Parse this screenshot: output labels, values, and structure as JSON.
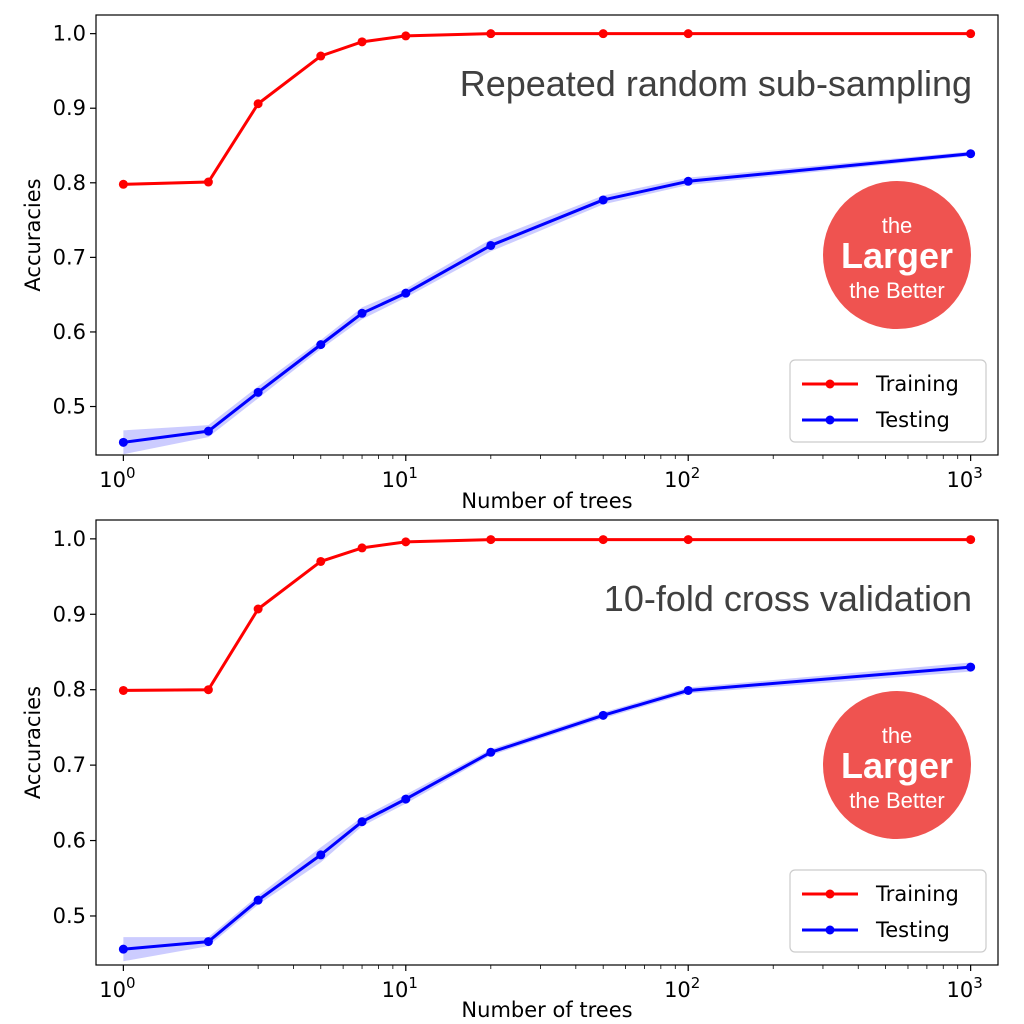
{
  "chart_data": [
    {
      "type": "line",
      "annotation": "Repeated random sub-sampling",
      "xlabel": "Number of trees",
      "ylabel": "Accuracies",
      "xscale": "log",
      "xlim": [
        0.8,
        1250
      ],
      "ylim": [
        0.435,
        1.025
      ],
      "yticks": [
        "0.5",
        "0.6",
        "0.7",
        "0.8",
        "0.9",
        "1.0"
      ],
      "xticks": [
        {
          "base": "10",
          "exp": "0"
        },
        {
          "base": "10",
          "exp": "1"
        },
        {
          "base": "10",
          "exp": "2"
        },
        {
          "base": "10",
          "exp": "3"
        }
      ],
      "grid": false,
      "legend_position": "bottom-right",
      "x": [
        1,
        2,
        3,
        5,
        7,
        10,
        20,
        50,
        100,
        1000
      ],
      "series": [
        {
          "name": "Training",
          "color": "#ff0000",
          "values": [
            0.798,
            0.801,
            0.906,
            0.97,
            0.989,
            0.997,
            1.0,
            1.0,
            1.0,
            1.0
          ],
          "band": [
            0.002,
            0.002,
            0.002,
            0.002,
            0.001,
            0.001,
            0.0,
            0.0,
            0.0,
            0.0
          ]
        },
        {
          "name": "Testing",
          "color": "#0000ff",
          "values": [
            0.452,
            0.467,
            0.519,
            0.583,
            0.625,
            0.652,
            0.716,
            0.777,
            0.802,
            0.839
          ],
          "band": [
            0.016,
            0.008,
            0.008,
            0.006,
            0.008,
            0.006,
            0.008,
            0.006,
            0.005,
            0.003
          ]
        }
      ],
      "badge": {
        "line1": "the",
        "line2": "Larger",
        "line3": "the Better",
        "color": "#ef5350"
      }
    },
    {
      "type": "line",
      "annotation": "10-fold cross validation",
      "xlabel": "Number of trees",
      "ylabel": "Accuracies",
      "xscale": "log",
      "xlim": [
        0.8,
        1250
      ],
      "ylim": [
        0.435,
        1.025
      ],
      "yticks": [
        "0.5",
        "0.6",
        "0.7",
        "0.8",
        "0.9",
        "1.0"
      ],
      "xticks": [
        {
          "base": "10",
          "exp": "0"
        },
        {
          "base": "10",
          "exp": "1"
        },
        {
          "base": "10",
          "exp": "2"
        },
        {
          "base": "10",
          "exp": "3"
        }
      ],
      "grid": false,
      "legend_position": "bottom-right",
      "x": [
        1,
        2,
        3,
        5,
        7,
        10,
        20,
        50,
        100,
        1000
      ],
      "series": [
        {
          "name": "Training",
          "color": "#ff0000",
          "values": [
            0.799,
            0.8,
            0.907,
            0.97,
            0.988,
            0.996,
            0.999,
            0.999,
            0.999,
            0.999
          ],
          "band": [
            0.002,
            0.002,
            0.002,
            0.002,
            0.001,
            0.001,
            0.0,
            0.0,
            0.0,
            0.0
          ]
        },
        {
          "name": "Testing",
          "color": "#0000ff",
          "values": [
            0.456,
            0.466,
            0.521,
            0.581,
            0.625,
            0.655,
            0.717,
            0.766,
            0.799,
            0.83
          ],
          "band": [
            0.016,
            0.006,
            0.006,
            0.01,
            0.006,
            0.006,
            0.004,
            0.004,
            0.004,
            0.006
          ]
        }
      ],
      "badge": {
        "line1": "the",
        "line2": "Larger",
        "line3": "the Better",
        "color": "#ef5350"
      }
    }
  ]
}
